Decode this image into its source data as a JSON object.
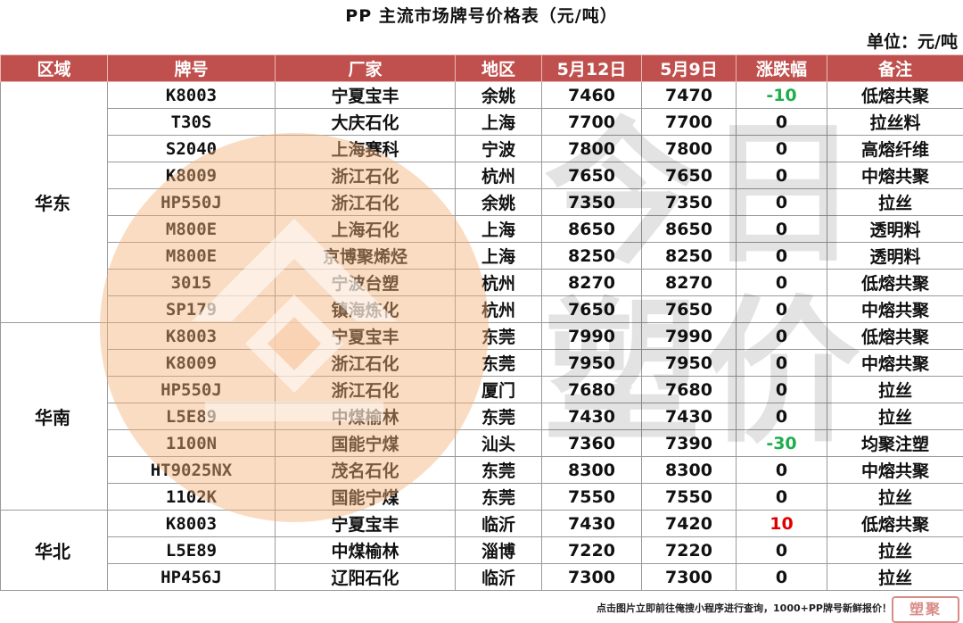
{
  "title": "PP 主流市场牌号价格表（元/吨）",
  "unit": "单位：元/吨",
  "headers": [
    "区域",
    "牌号",
    "厂家",
    "地区",
    "5月12日",
    "5月9日",
    "涨跌幅",
    "备注"
  ],
  "colors": {
    "header_bg": "#c0504d",
    "down": "#1fae4d",
    "up": "#e00000",
    "watermark_circle": "#f4b27a"
  },
  "watermark_text": "今日塑价",
  "regions": [
    {
      "name": "华东",
      "rows": [
        {
          "code": "K8003",
          "maker": "宁夏宝丰",
          "area": "余姚",
          "p1": "7460",
          "p2": "7470",
          "change": "-10",
          "note": "低熔共聚"
        },
        {
          "code": "T30S",
          "maker": "大庆石化",
          "area": "上海",
          "p1": "7700",
          "p2": "7700",
          "change": "0",
          "note": "拉丝料"
        },
        {
          "code": "S2040",
          "maker": "上海赛科",
          "area": "宁波",
          "p1": "7800",
          "p2": "7800",
          "change": "0",
          "note": "高熔纤维"
        },
        {
          "code": "K8009",
          "maker": "浙江石化",
          "area": "杭州",
          "p1": "7650",
          "p2": "7650",
          "change": "0",
          "note": "中熔共聚"
        },
        {
          "code": "HP550J",
          "maker": "浙江石化",
          "area": "余姚",
          "p1": "7350",
          "p2": "7350",
          "change": "0",
          "note": "拉丝"
        },
        {
          "code": "M800E",
          "maker": "上海石化",
          "area": "上海",
          "p1": "8650",
          "p2": "8650",
          "change": "0",
          "note": "透明料"
        },
        {
          "code": "M800E",
          "maker": "京博聚烯烃",
          "area": "上海",
          "p1": "8250",
          "p2": "8250",
          "change": "0",
          "note": "透明料"
        },
        {
          "code": "3015",
          "maker": "宁波台塑",
          "area": "杭州",
          "p1": "8270",
          "p2": "8270",
          "change": "0",
          "note": "低熔共聚"
        },
        {
          "code": "SP179",
          "maker": "镇海炼化",
          "area": "杭州",
          "p1": "7650",
          "p2": "7650",
          "change": "0",
          "note": "中熔共聚"
        }
      ]
    },
    {
      "name": "华南",
      "rows": [
        {
          "code": "K8003",
          "maker": "宁夏宝丰",
          "area": "东莞",
          "p1": "7990",
          "p2": "7990",
          "change": "0",
          "note": "低熔共聚"
        },
        {
          "code": "K8009",
          "maker": "浙江石化",
          "area": "东莞",
          "p1": "7950",
          "p2": "7950",
          "change": "0",
          "note": "中熔共聚"
        },
        {
          "code": "HP550J",
          "maker": "浙江石化",
          "area": "厦门",
          "p1": "7680",
          "p2": "7680",
          "change": "0",
          "note": "拉丝"
        },
        {
          "code": "L5E89",
          "maker": "中煤榆林",
          "area": "东莞",
          "p1": "7430",
          "p2": "7430",
          "change": "0",
          "note": "拉丝"
        },
        {
          "code": "1100N",
          "maker": "国能宁煤",
          "area": "汕头",
          "p1": "7360",
          "p2": "7390",
          "change": "-30",
          "note": "均聚注塑"
        },
        {
          "code": "HT9025NX",
          "maker": "茂名石化",
          "area": "东莞",
          "p1": "8300",
          "p2": "8300",
          "change": "0",
          "note": "中熔共聚"
        },
        {
          "code": "1102K",
          "maker": "国能宁煤",
          "area": "东莞",
          "p1": "7550",
          "p2": "7550",
          "change": "0",
          "note": "拉丝"
        }
      ]
    },
    {
      "name": "华北",
      "rows": [
        {
          "code": "K8003",
          "maker": "宁夏宝丰",
          "area": "临沂",
          "p1": "7430",
          "p2": "7420",
          "change": "10",
          "note": "低熔共聚"
        },
        {
          "code": "L5E89",
          "maker": "中煤榆林",
          "area": "淄博",
          "p1": "7220",
          "p2": "7220",
          "change": "0",
          "note": "拉丝"
        },
        {
          "code": "HP456J",
          "maker": "辽阳石化",
          "area": "临沂",
          "p1": "7300",
          "p2": "7300",
          "change": "0",
          "note": "拉丝"
        }
      ]
    }
  ],
  "footer": "点击图片立即前往俺搜小程序进行查询，1000+PP牌号新鲜报价！",
  "stamp": "塑聚"
}
